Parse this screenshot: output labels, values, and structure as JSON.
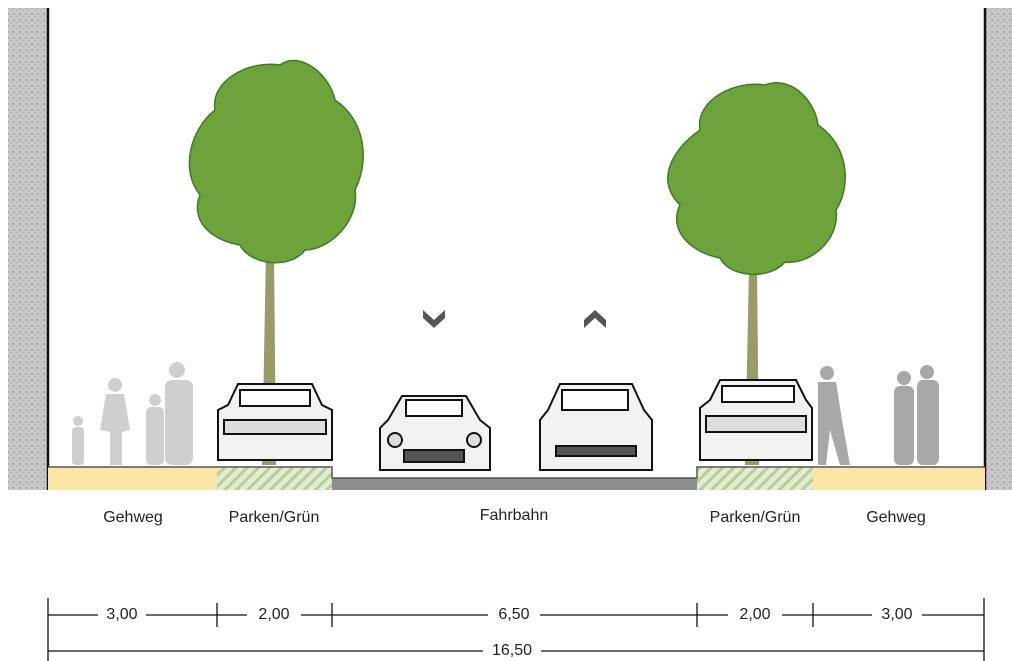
{
  "sections": [
    {
      "label": "Gehweg",
      "width": "3,00"
    },
    {
      "label": "Parken/Grün",
      "width": "2,00"
    },
    {
      "label": "Fahrbahn",
      "width": "6,50"
    },
    {
      "label": "Parken/Grün",
      "width": "2,00"
    },
    {
      "label": "Gehweg",
      "width": "3,00"
    }
  ],
  "total": "16,50"
}
